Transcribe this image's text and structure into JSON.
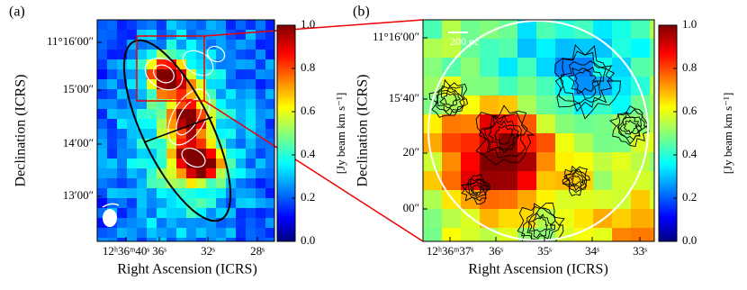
{
  "panels": [
    {
      "label": "(a)",
      "xlabel": "Right Ascension (ICRS)",
      "ylabel": "Declination (ICRS)",
      "xticks": [
        "12ʰ36ᵐ40ˢ",
        "36ˢ",
        "32ˢ",
        "28ˢ"
      ],
      "yticks": [
        "11°16′00″",
        "15′00″",
        "14′00″",
        "13′00″"
      ],
      "colorbar": {
        "label": "[Jy beam km s⁻¹]",
        "lim": [
          0,
          1
        ],
        "ticks": [
          {
            "value": 0,
            "label": "0.0"
          },
          {
            "value": 0.2,
            "label": "0.2"
          },
          {
            "value": 0.4,
            "label": "0.4"
          },
          {
            "value": 0.6,
            "label": "0.6"
          },
          {
            "value": 0.8,
            "label": "0.8"
          },
          {
            "value": 1,
            "label": "1.0"
          }
        ]
      }
    },
    {
      "label": "(b)",
      "xlabel": "Right Ascension (ICRS)",
      "ylabel": "Declination (ICRS)",
      "scalebar": "200 pc",
      "xticks": [
        "12ʰ36ᵐ37ˢ",
        "36ˢ",
        "35ˢ",
        "34ˢ",
        "33ˢ"
      ],
      "yticks": [
        "11°16′00″",
        "15′40″",
        "20″",
        "00″"
      ],
      "colorbar": {
        "label": "[Jy beam km s⁻¹]",
        "lim": [
          0,
          1
        ],
        "ticks": [
          {
            "value": 0,
            "label": "0.0"
          },
          {
            "value": 0.2,
            "label": "0.2"
          },
          {
            "value": 0.4,
            "label": "0.4"
          },
          {
            "value": 0.6,
            "label": "0.6"
          },
          {
            "value": 0.8,
            "label": "0.8"
          },
          {
            "value": 1,
            "label": "1.0"
          }
        ]
      }
    }
  ]
}
